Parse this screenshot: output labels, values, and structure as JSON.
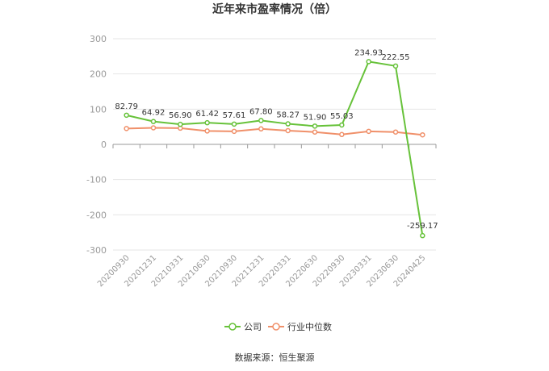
{
  "chart_data": {
    "type": "line",
    "title": "近年来市盈率情况（倍）",
    "categories": [
      "20200930",
      "20201231",
      "20210331",
      "20210630",
      "20210930",
      "20211231",
      "20220331",
      "20220630",
      "20220930",
      "20230331",
      "20230630",
      "20240425"
    ],
    "series": [
      {
        "name": "公司",
        "color": "#67c23a",
        "values": [
          82.79,
          64.92,
          56.9,
          61.42,
          57.61,
          67.8,
          58.27,
          51.9,
          55.03,
          234.93,
          222.55,
          -259.17
        ],
        "labels": [
          "82.79",
          "64.92",
          "56.90",
          "61.42",
          "57.61",
          "67.80",
          "58.27",
          "51.90",
          "55.03",
          "234.93",
          "222.55",
          "-259.17"
        ]
      },
      {
        "name": "行业中位数",
        "color": "#f0906a",
        "values": [
          45,
          47,
          46,
          38,
          37,
          44,
          39,
          35,
          28,
          37,
          35,
          27
        ]
      }
    ],
    "yticks": [
      300,
      200,
      100,
      0,
      -100,
      -200,
      -300
    ],
    "ylim": [
      -300,
      300
    ],
    "grid": true,
    "legend_position": "bottom-center"
  },
  "source_text": "数据来源：恒生聚源"
}
